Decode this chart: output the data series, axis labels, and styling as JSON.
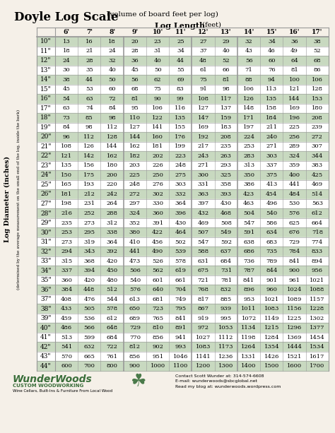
{
  "title_bold": "Doyle Log Scale",
  "title_light": " (volume of board feet per log)",
  "subtitle_bold": "Log Length",
  "subtitle_light": " (feet)",
  "col_header": [
    "6'",
    "7'",
    "8'",
    "9'",
    "10'",
    "11'",
    "12'",
    "13'",
    "14'",
    "15'",
    "16'",
    "17'"
  ],
  "row_labels": [
    "10\"",
    "11\"",
    "12\"",
    "13\"",
    "14\"",
    "15\"",
    "16\"",
    "17\"",
    "18\"",
    "19\"",
    "20\"",
    "21\"",
    "22\"",
    "23\"",
    "24\"",
    "25\"",
    "26\"",
    "27\"",
    "28\"",
    "29\"",
    "30\"",
    "31\"",
    "32\"",
    "33\"",
    "34\"",
    "35\"",
    "36\"",
    "37\"",
    "38\"",
    "39\"",
    "40\"",
    "41\"",
    "42\"",
    "43\"",
    "44\""
  ],
  "table_data": [
    [
      13,
      16,
      18,
      20,
      23,
      25,
      27,
      29,
      32,
      34,
      36,
      38
    ],
    [
      18,
      21,
      24,
      28,
      31,
      34,
      37,
      40,
      43,
      46,
      49,
      52
    ],
    [
      24,
      28,
      32,
      36,
      40,
      44,
      48,
      52,
      56,
      60,
      64,
      68
    ],
    [
      30,
      35,
      40,
      45,
      50,
      55,
      61,
      66,
      71,
      76,
      81,
      86
    ],
    [
      38,
      44,
      50,
      56,
      62,
      69,
      75,
      81,
      88,
      94,
      100,
      106
    ],
    [
      45,
      53,
      60,
      68,
      75,
      83,
      91,
      98,
      106,
      113,
      121,
      128
    ],
    [
      54,
      63,
      72,
      81,
      90,
      99,
      108,
      117,
      126,
      135,
      144,
      153
    ],
    [
      63,
      74,
      84,
      95,
      106,
      116,
      127,
      137,
      148,
      158,
      169,
      180
    ],
    [
      73,
      85,
      98,
      110,
      122,
      135,
      147,
      159,
      171,
      184,
      196,
      208
    ],
    [
      84,
      98,
      112,
      127,
      141,
      155,
      169,
      183,
      197,
      211,
      225,
      239
    ],
    [
      96,
      112,
      128,
      144,
      160,
      176,
      192,
      208,
      224,
      240,
      256,
      272
    ],
    [
      108,
      126,
      144,
      162,
      181,
      199,
      217,
      235,
      253,
      271,
      289,
      307
    ],
    [
      121,
      142,
      162,
      182,
      202,
      223,
      243,
      263,
      283,
      303,
      324,
      344
    ],
    [
      135,
      156,
      180,
      203,
      226,
      248,
      271,
      293,
      313,
      337,
      359,
      383
    ],
    [
      150,
      175,
      200,
      225,
      250,
      275,
      300,
      325,
      350,
      375,
      400,
      425
    ],
    [
      165,
      193,
      220,
      248,
      276,
      303,
      331,
      358,
      386,
      413,
      441,
      469
    ],
    [
      181,
      212,
      242,
      272,
      302,
      332,
      363,
      393,
      423,
      454,
      484,
      514
    ],
    [
      198,
      231,
      264,
      297,
      330,
      364,
      397,
      430,
      463,
      496,
      530,
      563
    ],
    [
      216,
      252,
      288,
      324,
      360,
      396,
      432,
      468,
      504,
      540,
      576,
      612
    ],
    [
      235,
      273,
      312,
      352,
      391,
      430,
      469,
      508,
      547,
      586,
      625,
      664
    ],
    [
      253,
      295,
      338,
      380,
      422,
      464,
      507,
      549,
      591,
      634,
      676,
      718
    ],
    [
      273,
      319,
      364,
      410,
      456,
      502,
      547,
      592,
      638,
      683,
      729,
      774
    ],
    [
      294,
      343,
      392,
      441,
      490,
      539,
      588,
      637,
      686,
      735,
      784,
      833
    ],
    [
      315,
      368,
      420,
      473,
      526,
      578,
      631,
      684,
      736,
      789,
      841,
      894
    ],
    [
      337,
      394,
      450,
      506,
      562,
      619,
      675,
      731,
      787,
      844,
      900,
      956
    ],
    [
      360,
      420,
      480,
      540,
      601,
      661,
      721,
      781,
      841,
      901,
      961,
      1021
    ],
    [
      384,
      448,
      512,
      576,
      640,
      704,
      768,
      832,
      896,
      960,
      1024,
      1088
    ],
    [
      408,
      476,
      544,
      613,
      681,
      749,
      817,
      885,
      953,
      1021,
      1089,
      1157
    ],
    [
      433,
      505,
      578,
      650,
      723,
      795,
      867,
      939,
      1011,
      1083,
      1156,
      1228
    ],
    [
      459,
      536,
      612,
      689,
      765,
      841,
      919,
      995,
      1072,
      1149,
      1225,
      1302
    ],
    [
      486,
      566,
      648,
      729,
      810,
      891,
      972,
      1053,
      1134,
      1215,
      1296,
      1377
    ],
    [
      513,
      599,
      684,
      770,
      856,
      941,
      1027,
      1112,
      1198,
      1284,
      1369,
      1454
    ],
    [
      541,
      632,
      722,
      812,
      902,
      993,
      1083,
      1173,
      1264,
      1354,
      1444,
      1534
    ],
    [
      570,
      665,
      761,
      856,
      951,
      1046,
      1141,
      1236,
      1331,
      1426,
      1521,
      1617
    ],
    [
      600,
      700,
      800,
      900,
      1000,
      1100,
      1200,
      1300,
      1400,
      1500,
      1600,
      1700
    ]
  ],
  "green_color": "#c8d9c0",
  "white_color": "#ffffff",
  "border_color": "#999999",
  "background_color": "#f5f0e8",
  "ylabel": "Log Diameter (inches)",
  "ylabel2": "(determined by the average measurement on the small end of the log, inside the bark)",
  "footer_company": "WunderWoods",
  "footer_sub": "CUSTOM WOODWORKING",
  "footer_tagline": "Wine Cellars, Built-Ins & Furniture From Local Wood",
  "footer_contact": "Contact Scott Wunder at: 314-574-6608\nE-mail: wunderwoods@sbcglobal.net\nRead my blog at: wunderwoods.wordpress.com",
  "logo_color": "#3a6e3a"
}
